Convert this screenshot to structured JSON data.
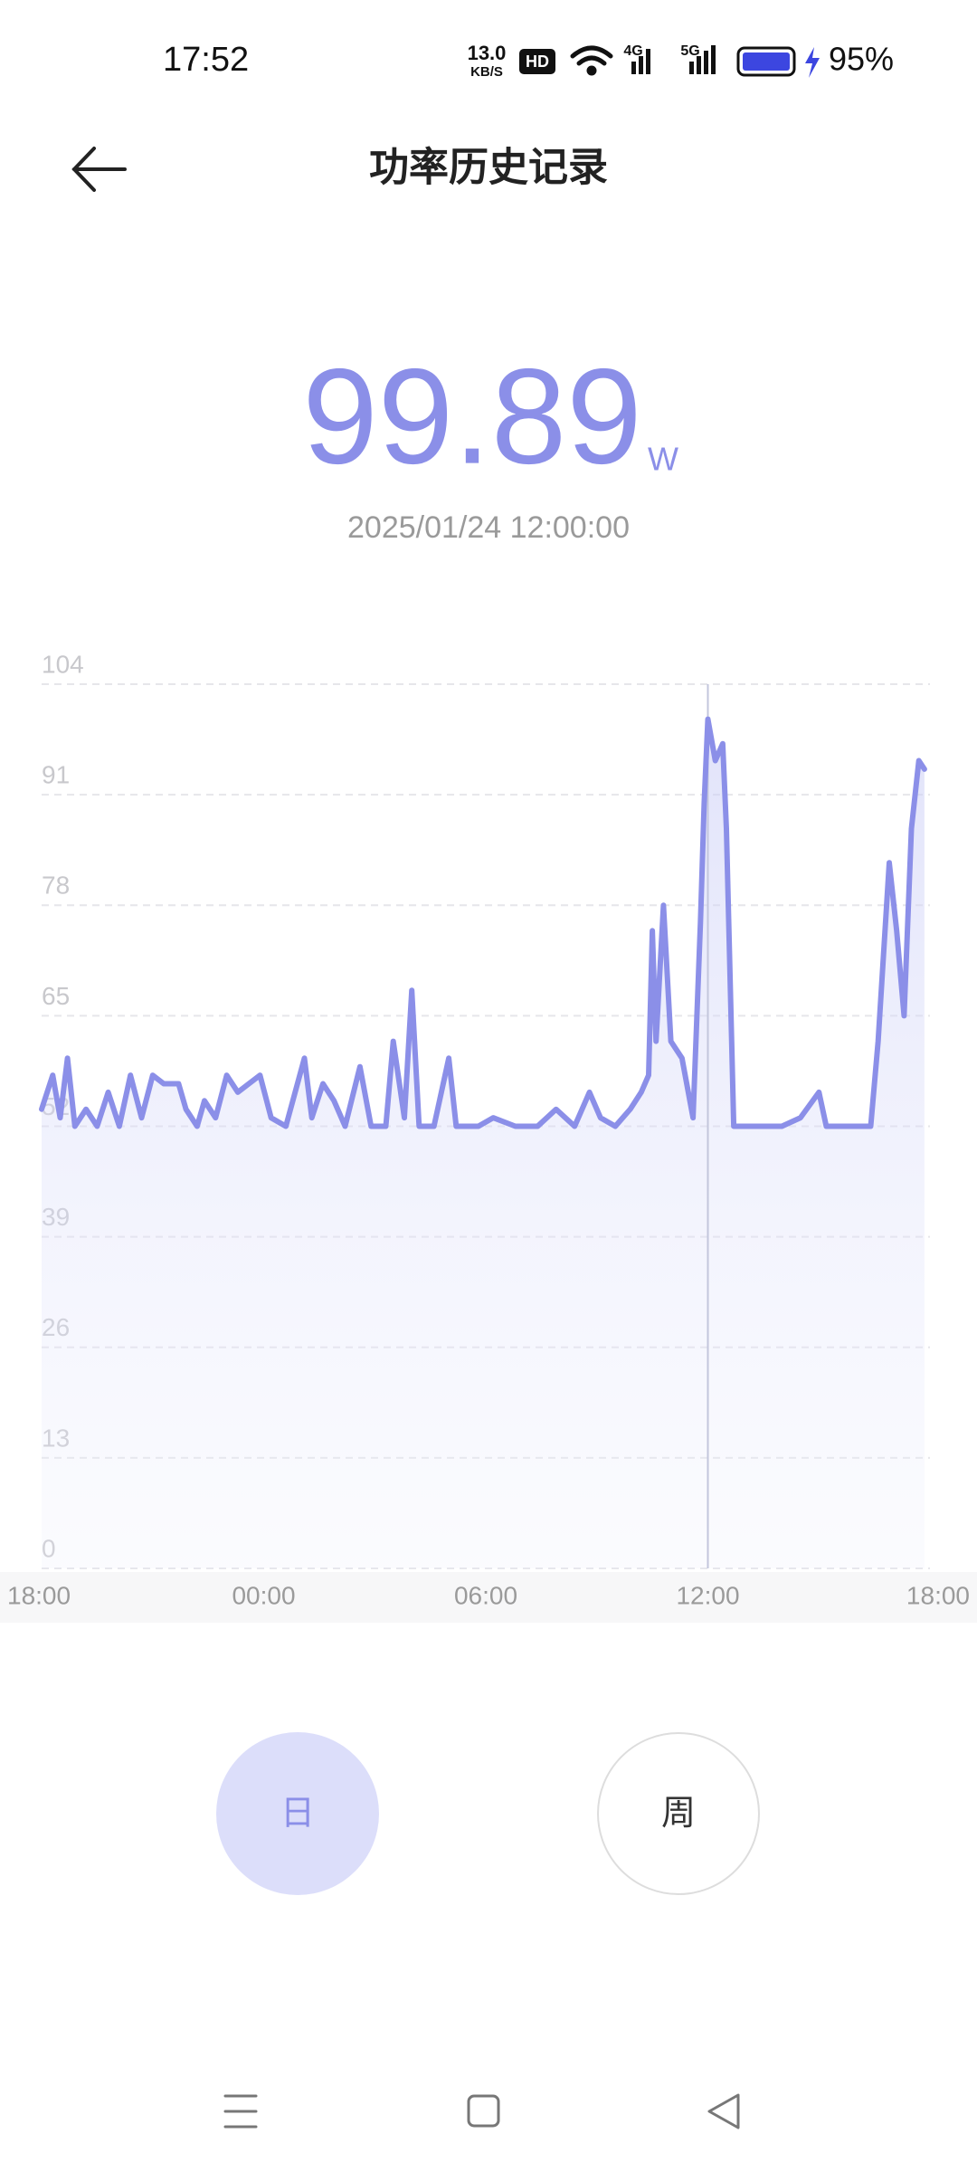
{
  "status_bar": {
    "time": "17:52",
    "net_speed": "13.0",
    "net_speed_unit": "KB/S",
    "hd": "HD",
    "sig1": "4G",
    "sig2": "5G",
    "battery": "95%"
  },
  "header": {
    "title": "功率历史记录"
  },
  "readout": {
    "value": 99.89,
    "unit": "W",
    "time": "2025/01/24 12:00:00"
  },
  "chart_data": {
    "type": "line",
    "color": "#8b8fe8",
    "grid": true,
    "x": [
      0,
      0.3,
      0.5,
      0.7,
      0.9,
      1.2,
      1.5,
      1.8,
      2.1,
      2.4,
      2.7,
      3.0,
      3.3,
      3.7,
      3.9,
      4.2,
      4.4,
      4.7,
      5.0,
      5.3,
      5.6,
      5.9,
      6.2,
      6.6,
      7.1,
      7.3,
      7.6,
      7.9,
      8.2,
      8.6,
      8.9,
      9.3,
      9.5,
      9.8,
      10.0,
      10.2,
      10.6,
      11.0,
      11.2,
      11.8,
      12.2,
      12.8,
      13.4,
      13.9,
      14.4,
      14.8,
      15.1,
      15.5,
      15.9,
      16.2,
      16.4,
      16.5,
      16.6,
      16.8,
      17.0,
      17.3,
      17.6,
      17.8,
      17.9,
      18.0,
      18.2,
      18.4,
      18.5,
      18.7,
      19.3,
      20.0,
      20.5,
      21.0,
      21.2,
      21.8,
      22.4,
      22.6,
      22.9,
      23.1,
      23.3,
      23.5,
      23.7,
      23.85
    ],
    "values": [
      54,
      58,
      53,
      60,
      52,
      54,
      52,
      56,
      52,
      58,
      53,
      58,
      57,
      57,
      54,
      52,
      55,
      53,
      58,
      56,
      57,
      58,
      53,
      52,
      60,
      53,
      57,
      55,
      52,
      59,
      52,
      52,
      62,
      53,
      68,
      52,
      52,
      60,
      52,
      52,
      53,
      52,
      52,
      54,
      52,
      56,
      53,
      52,
      54,
      56,
      58,
      75,
      62,
      78,
      62,
      60,
      53,
      76,
      90,
      99.89,
      95,
      97,
      87,
      52,
      52,
      52,
      53,
      56,
      52,
      52,
      52,
      62,
      83,
      75,
      65,
      87,
      95,
      94
    ],
    "xlim": [
      0,
      24
    ],
    "xticks": [
      {
        "value": 0,
        "label": "18:00"
      },
      {
        "value": 6,
        "label": "00:00"
      },
      {
        "value": 12,
        "label": "06:00"
      },
      {
        "value": 18,
        "label": "12:00"
      },
      {
        "value": 24,
        "label": "18:00"
      }
    ],
    "ylim": [
      0,
      104
    ],
    "yticks": [
      0,
      13,
      26,
      39,
      52,
      65,
      78,
      91,
      104
    ]
  },
  "tabs": [
    "日",
    "周"
  ]
}
